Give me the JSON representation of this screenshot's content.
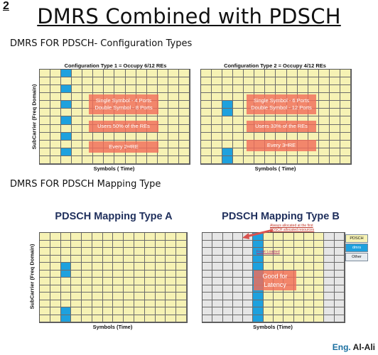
{
  "slide_number": "2",
  "title": "DMRS Combined with  PDSCH",
  "section1_title": "DMRS FOR PDSCH- Configuration Types",
  "section2_title": "DMRS FOR PDSCH Mapping Type",
  "colors": {
    "re_yellow": "#f6f2b4",
    "dmrs_blue": "#1ea1de",
    "overlay_red": "#f06e5a",
    "grey_region": "#e6e6e6",
    "title_navy": "#1f2f5c"
  },
  "config_type1": {
    "title": "Configuration Type 1 = Occupy 6/12 REs",
    "x_label": "Symbols ( Time)",
    "y_label": "SubCarrier (Freq Domain)",
    "rows": 12,
    "cols": 14,
    "dmrs_symbol": 2,
    "dmrs_rows": [
      0,
      2,
      4,
      6,
      8,
      10
    ],
    "box1_line1": "Single Symbol - 4 Ports",
    "box1_line2": "Double Symbol - 8 Ports",
    "box2": "Users 50% of the REs",
    "box3_pre": "Every 2",
    "box3_sup": "nd",
    "box3_post": " RE"
  },
  "config_type2": {
    "title": "Configuration Type 2 = Occupy 4/12 REs",
    "x_label": "Symbols ( Time)",
    "rows": 12,
    "cols": 14,
    "dmrs_symbol": 2,
    "dmrs_rows": [
      4,
      5,
      10,
      11
    ],
    "box1_line1": "Single Symbol - 6 Ports",
    "box1_line2": "Double Symbol - 12 Ports",
    "box2": "Users 33% of the REs",
    "box3_pre": "Every 3",
    "box3_sup": "rd",
    "box3_post": " RE"
  },
  "mapping_a": {
    "title": "PDSCH Mapping Type A",
    "x_label": "Symbols (Time)",
    "y_label": "SubCarrier (Freq Domain)",
    "rows": 12,
    "cols": 14,
    "dmrs_symbol": 2,
    "dmrs_rows": [
      4,
      5,
      10,
      11
    ]
  },
  "mapping_b": {
    "title": "PDSCH Mapping Type B",
    "x_label": "Symbols (Time)",
    "rows": 12,
    "cols": 14,
    "pdsch_start": 5,
    "pdsch_end": 11,
    "dmrs_rows": [
      0,
      1,
      2,
      3,
      4,
      5,
      6,
      7,
      8,
      9,
      10,
      11
    ],
    "callout_line1": "Always allocated at the first",
    "callout_line2": "PDSCH allocated resources",
    "front_loaded": "Front Loaded",
    "latency_line1": "Good for",
    "latency_line2": "Latency"
  },
  "legend": [
    "PDSCH",
    "dmrs",
    "Other"
  ],
  "footer": {
    "prefix": "Eng.",
    "name": "Al-Ali"
  }
}
